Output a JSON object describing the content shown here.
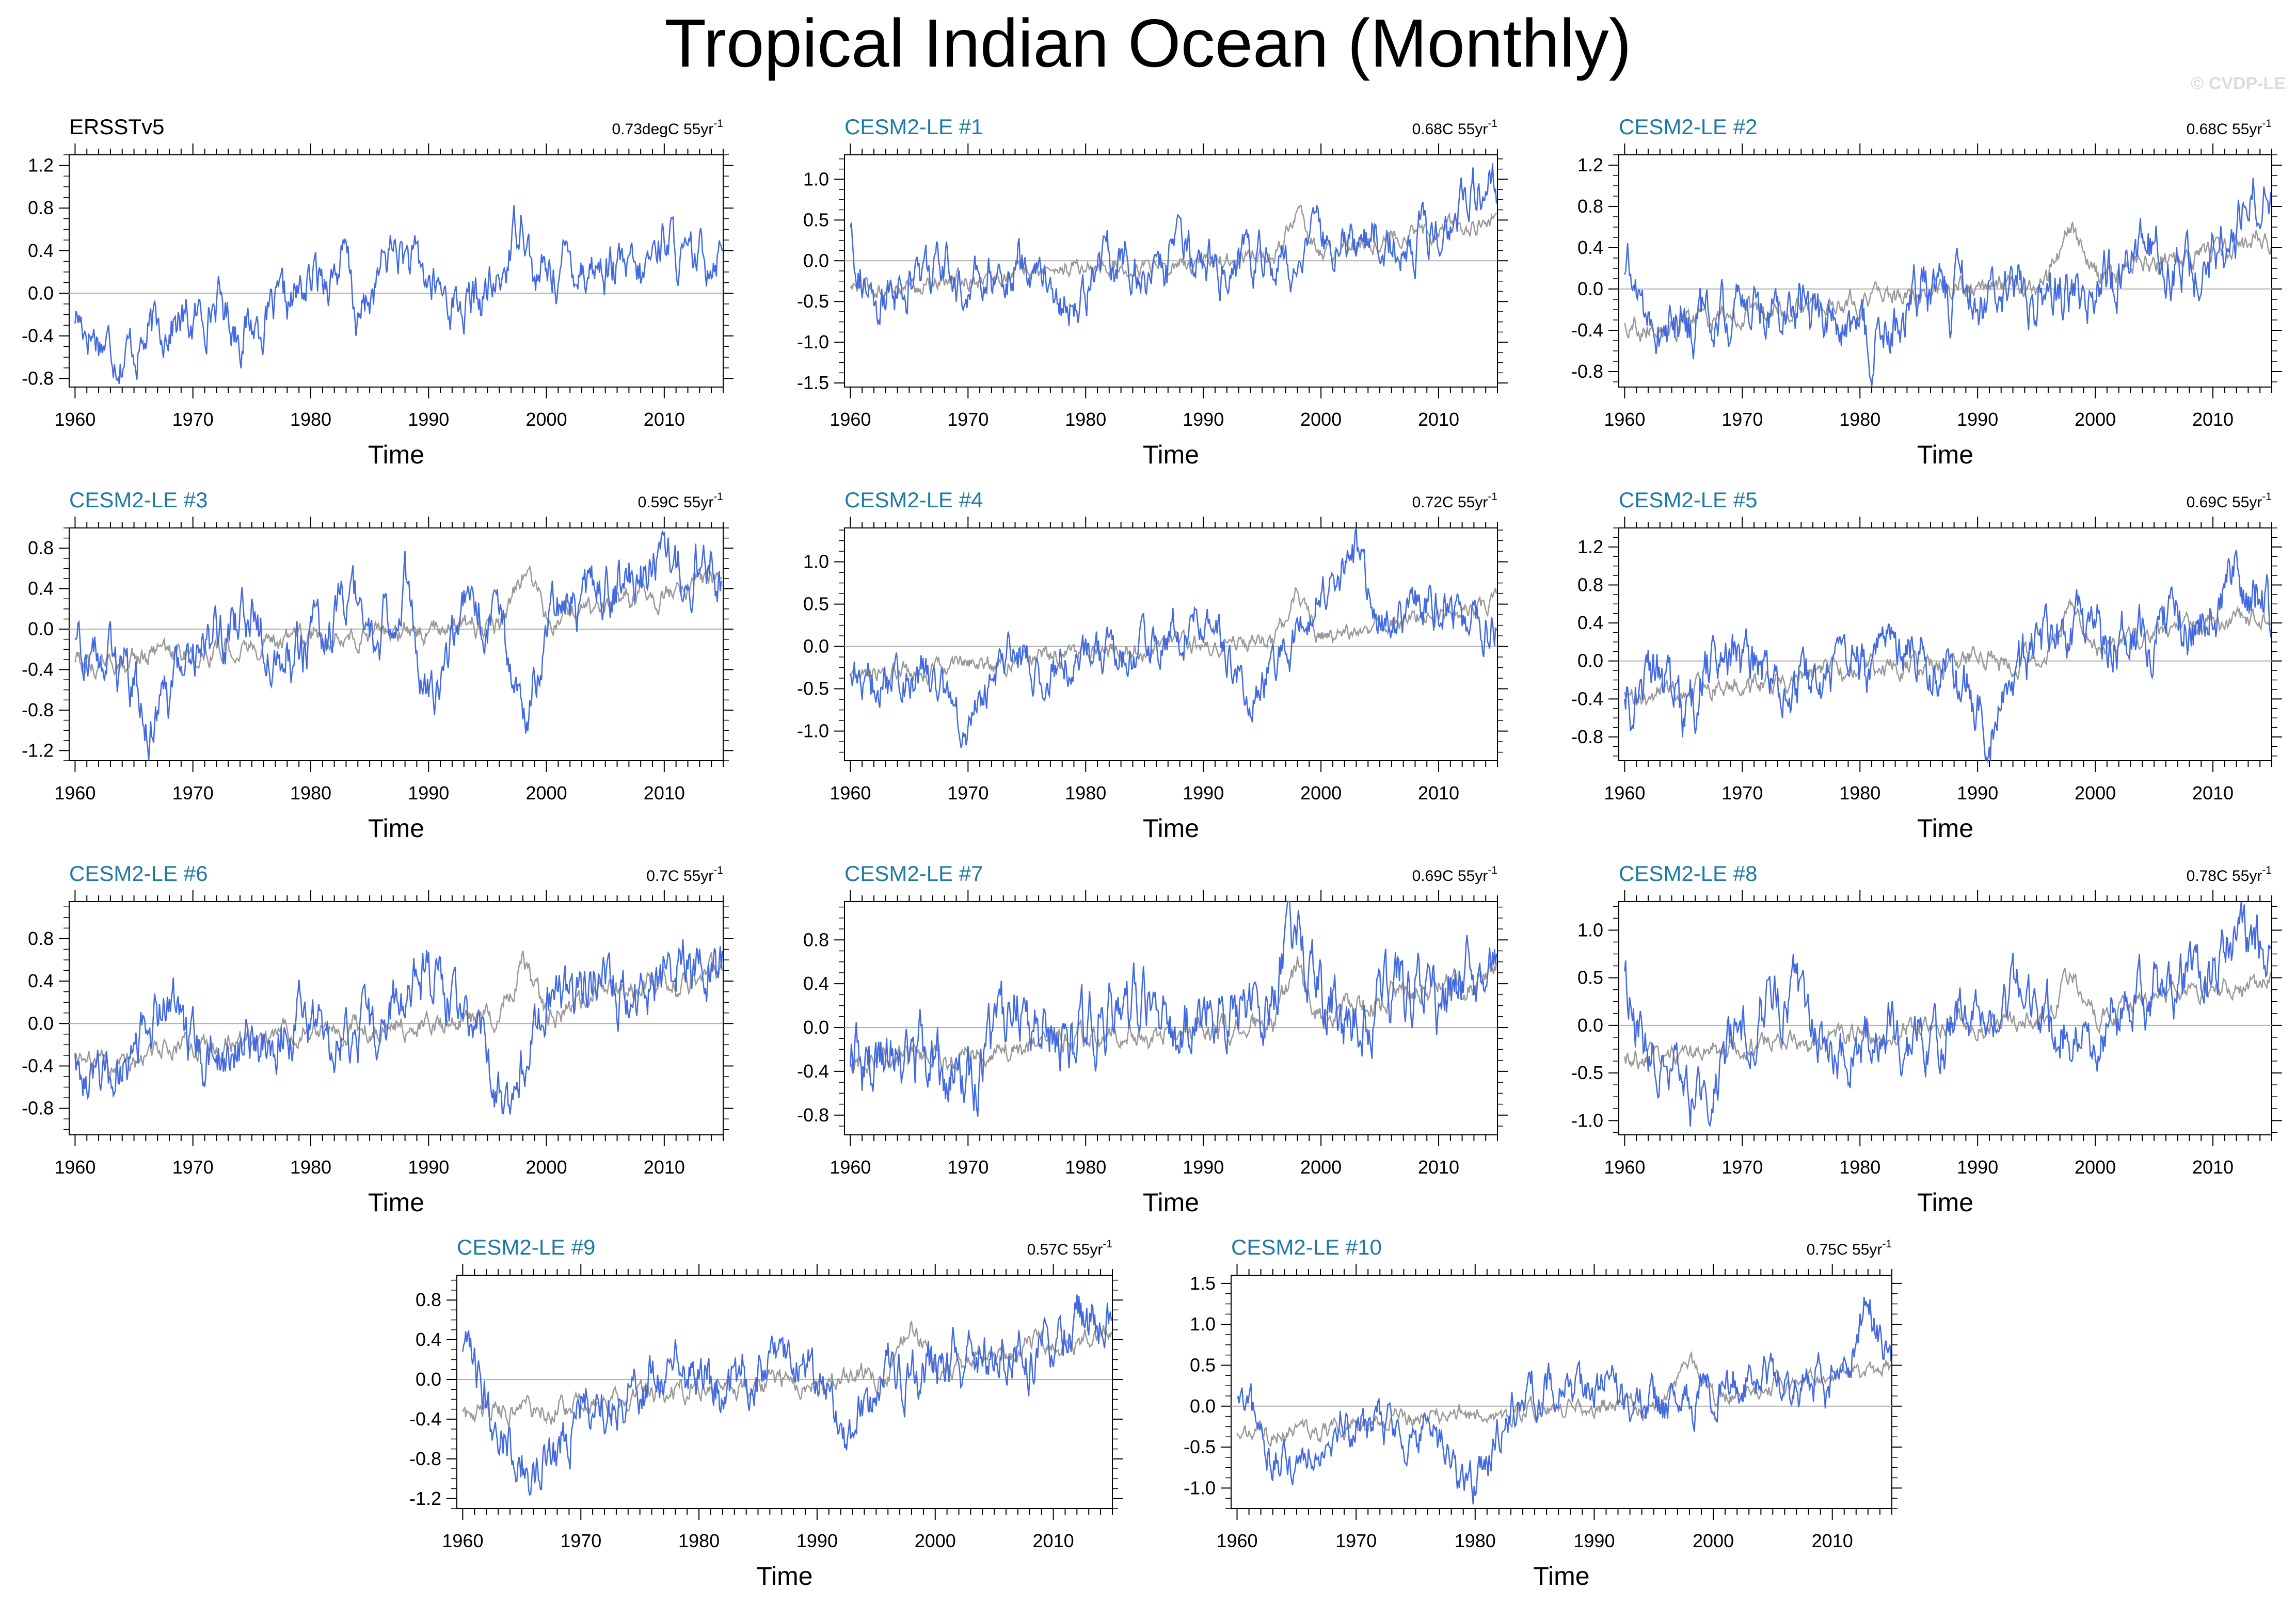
{
  "title": "Tropical Indian Ocean (Monthly)",
  "watermark": "© CVDP-LE",
  "colors": {
    "observed": "#4169e1",
    "ensemble_mean": "#999999",
    "model_title": "#1c7aa3",
    "obs_title": "#000000"
  },
  "chart_data": [
    {
      "type": "line",
      "id": "ERSSTv5",
      "title": "ERSSTv5",
      "trend": "0.73degC 55yr",
      "trend_exp": "-1",
      "xlabel": "Time",
      "xticks": [
        1960,
        1970,
        1980,
        1990,
        2000,
        2010
      ],
      "yticks": [
        "1.2",
        "0.8",
        "0.4",
        "0.0",
        "-0.4",
        "-0.8"
      ],
      "ylim": [
        -0.88,
        1.3
      ],
      "xlim": [
        1959.5,
        2015
      ],
      "anchors": [
        [
          1960,
          -0.2
        ],
        [
          1962,
          -0.4
        ],
        [
          1964,
          -0.55
        ],
        [
          1966,
          -0.45
        ],
        [
          1968,
          -0.25
        ],
        [
          1970,
          -0.3
        ],
        [
          1972,
          -0.05
        ],
        [
          1974,
          -0.35
        ],
        [
          1976,
          -0.25
        ],
        [
          1978,
          -0.15
        ],
        [
          1980,
          0.1
        ],
        [
          1983,
          0.3
        ],
        [
          1984,
          -0.3
        ],
        [
          1987,
          0.45
        ],
        [
          1990,
          0.1
        ],
        [
          1993,
          -0.15
        ],
        [
          1996,
          0.05
        ],
        [
          1998,
          0.85
        ],
        [
          1999,
          0.1
        ],
        [
          2002,
          0.3
        ],
        [
          2005,
          0.25
        ],
        [
          2008,
          0.1
        ],
        [
          2010,
          0.6
        ],
        [
          2012,
          0.2
        ],
        [
          2015,
          0.5
        ]
      ],
      "noise": 0.15
    },
    {
      "type": "line",
      "id": "m1",
      "title": "CESM2-LE #1",
      "trend": "0.68C 55yr",
      "trend_exp": "-1",
      "xlabel": "Time",
      "xticks": [
        1960,
        1970,
        1980,
        1990,
        2000,
        2010
      ],
      "yticks": [
        "1.0",
        "0.5",
        "0.0",
        "-0.5",
        "-1.0",
        "-1.5"
      ],
      "ylim": [
        -1.55,
        1.3
      ],
      "xlim": [
        1959.5,
        2015
      ],
      "anchors": [
        [
          1960,
          0.5
        ],
        [
          1962,
          -0.8
        ],
        [
          1964,
          -0.3
        ],
        [
          1968,
          -0.1
        ],
        [
          1970,
          -0.4
        ],
        [
          1975,
          0.1
        ],
        [
          1979,
          -0.6
        ],
        [
          1982,
          0.1
        ],
        [
          1985,
          -0.2
        ],
        [
          1990,
          0.1
        ],
        [
          1995,
          -0.1
        ],
        [
          2000,
          0.2
        ],
        [
          2005,
          0.3
        ],
        [
          2010,
          0.35
        ],
        [
          2014,
          1.0
        ],
        [
          2015,
          0.9
        ]
      ],
      "noise": 0.2
    },
    {
      "type": "line",
      "id": "m2",
      "title": "CESM2-LE #2",
      "trend": "0.68C 55yr",
      "trend_exp": "-1",
      "xlabel": "Time",
      "xticks": [
        1960,
        1970,
        1980,
        1990,
        2000,
        2010
      ],
      "yticks": [
        "1.2",
        "0.8",
        "0.4",
        "0.0",
        "-0.4",
        "-0.8"
      ],
      "ylim": [
        -0.95,
        1.3
      ],
      "xlim": [
        1959.5,
        2015
      ],
      "anchors": [
        [
          1960,
          0.2
        ],
        [
          1963,
          -0.4
        ],
        [
          1967,
          -0.3
        ],
        [
          1972,
          -0.1
        ],
        [
          1977,
          -0.2
        ],
        [
          1981,
          -0.6
        ],
        [
          1985,
          -0.1
        ],
        [
          1990,
          -0.1
        ],
        [
          1995,
          0.0
        ],
        [
          2000,
          -0.05
        ],
        [
          2004,
          0.4
        ],
        [
          2008,
          0.2
        ],
        [
          2012,
          0.6
        ],
        [
          2014,
          1.1
        ],
        [
          2015,
          0.8
        ]
      ],
      "noise": 0.18
    },
    {
      "type": "line",
      "id": "m3",
      "title": "CESM2-LE #3",
      "trend": "0.59C 55yr",
      "trend_exp": "-1",
      "xlabel": "Time",
      "xticks": [
        1960,
        1970,
        1980,
        1990,
        2000,
        2010
      ],
      "yticks": [
        "0.8",
        "0.4",
        "0.0",
        "-0.4",
        "-0.8",
        "-1.2"
      ],
      "ylim": [
        -1.3,
        1.0
      ],
      "xlim": [
        1959.5,
        2015
      ],
      "anchors": [
        [
          1960,
          -0.05
        ],
        [
          1963,
          -0.3
        ],
        [
          1967,
          -1.0
        ],
        [
          1970,
          -0.2
        ],
        [
          1975,
          0.1
        ],
        [
          1979,
          -0.3
        ],
        [
          1983,
          0.2
        ],
        [
          1986,
          0.0
        ],
        [
          1988,
          0.45
        ],
        [
          1990,
          -0.7
        ],
        [
          1993,
          0.1
        ],
        [
          1996,
          0.2
        ],
        [
          1998,
          -0.9
        ],
        [
          2001,
          0.2
        ],
        [
          2005,
          0.3
        ],
        [
          2010,
          0.6
        ],
        [
          2014,
          0.7
        ],
        [
          2015,
          0.3
        ]
      ],
      "noise": 0.18
    },
    {
      "type": "line",
      "id": "m4",
      "title": "CESM2-LE #4",
      "trend": "0.72C 55yr",
      "trend_exp": "-1",
      "xlabel": "Time",
      "xticks": [
        1960,
        1970,
        1980,
        1990,
        2000,
        2010
      ],
      "yticks": [
        "1.0",
        "0.5",
        "0.0",
        "-0.5",
        "-1.0"
      ],
      "ylim": [
        -1.35,
        1.4
      ],
      "xlim": [
        1959.5,
        2015
      ],
      "anchors": [
        [
          1960,
          -0.3
        ],
        [
          1963,
          -0.5
        ],
        [
          1966,
          -0.3
        ],
        [
          1970,
          -1.0
        ],
        [
          1973,
          0.0
        ],
        [
          1977,
          -0.3
        ],
        [
          1981,
          -0.2
        ],
        [
          1985,
          0.0
        ],
        [
          1990,
          0.4
        ],
        [
          1994,
          -0.6
        ],
        [
          1998,
          0.1
        ],
        [
          2003,
          1.1
        ],
        [
          2005,
          0.3
        ],
        [
          2010,
          0.5
        ],
        [
          2013,
          0.3
        ],
        [
          2015,
          0.2
        ]
      ],
      "noise": 0.18
    },
    {
      "type": "line",
      "id": "m5",
      "title": "CESM2-LE #5",
      "trend": "0.69C 55yr",
      "trend_exp": "-1",
      "xlabel": "Time",
      "xticks": [
        1960,
        1970,
        1980,
        1990,
        2000,
        2010
      ],
      "yticks": [
        "1.2",
        "0.8",
        "0.4",
        "0.0",
        "-0.4",
        "-0.8"
      ],
      "ylim": [
        -1.05,
        1.4
      ],
      "xlim": [
        1959.5,
        2015
      ],
      "anchors": [
        [
          1960,
          -0.4
        ],
        [
          1963,
          -0.1
        ],
        [
          1965,
          -0.7
        ],
        [
          1968,
          0.1
        ],
        [
          1972,
          -0.2
        ],
        [
          1976,
          -0.3
        ],
        [
          1980,
          -0.2
        ],
        [
          1984,
          0.2
        ],
        [
          1988,
          -0.1
        ],
        [
          1991,
          -0.8
        ],
        [
          1994,
          0.0
        ],
        [
          1998,
          0.3
        ],
        [
          2001,
          0.2
        ],
        [
          2005,
          0.4
        ],
        [
          2009,
          0.3
        ],
        [
          2012,
          1.0
        ],
        [
          2015,
          0.5
        ]
      ],
      "noise": 0.2
    },
    {
      "type": "line",
      "id": "m6",
      "title": "CESM2-LE #6",
      "trend": "0.7C 55yr",
      "trend_exp": "-1",
      "xlabel": "Time",
      "xticks": [
        1960,
        1970,
        1980,
        1990,
        2000,
        2010
      ],
      "yticks": [
        "0.8",
        "0.4",
        "0.0",
        "-0.4",
        "-0.8"
      ],
      "ylim": [
        -1.05,
        1.15
      ],
      "xlim": [
        1959.5,
        2015
      ],
      "anchors": [
        [
          1960,
          -0.3
        ],
        [
          1964,
          -0.5
        ],
        [
          1968,
          0.3
        ],
        [
          1971,
          -0.4
        ],
        [
          1976,
          -0.2
        ],
        [
          1980,
          0.1
        ],
        [
          1983,
          -0.3
        ],
        [
          1987,
          0.2
        ],
        [
          1990,
          0.5
        ],
        [
          1993,
          0.1
        ],
        [
          1997,
          -0.8
        ],
        [
          2000,
          0.2
        ],
        [
          2004,
          0.4
        ],
        [
          2008,
          0.2
        ],
        [
          2012,
          0.7
        ],
        [
          2015,
          0.4
        ]
      ],
      "noise": 0.18
    },
    {
      "type": "line",
      "id": "m7",
      "title": "CESM2-LE #7",
      "trend": "0.69C 55yr",
      "trend_exp": "-1",
      "xlabel": "Time",
      "xticks": [
        1960,
        1970,
        1980,
        1990,
        2000,
        2010
      ],
      "yticks": [
        "0.8",
        "0.4",
        "0.0",
        "-0.4",
        "-0.8"
      ],
      "ylim": [
        -0.98,
        1.15
      ],
      "xlim": [
        1959.5,
        2015
      ],
      "anchors": [
        [
          1960,
          -0.4
        ],
        [
          1965,
          -0.2
        ],
        [
          1970,
          -0.5
        ],
        [
          1974,
          0.2
        ],
        [
          1979,
          -0.2
        ],
        [
          1983,
          0.3
        ],
        [
          1988,
          0.0
        ],
        [
          1992,
          0.2
        ],
        [
          1995,
          0.1
        ],
        [
          1998,
          0.8
        ],
        [
          2002,
          0.0
        ],
        [
          2006,
          0.4
        ],
        [
          2010,
          0.2
        ],
        [
          2014,
          0.7
        ],
        [
          2015,
          0.5
        ]
      ],
      "noise": 0.2
    },
    {
      "type": "line",
      "id": "m8",
      "title": "CESM2-LE #8",
      "trend": "0.78C 55yr",
      "trend_exp": "-1",
      "xlabel": "Time",
      "xticks": [
        1960,
        1970,
        1980,
        1990,
        2000,
        2010
      ],
      "yticks": [
        "1.0",
        "0.5",
        "0.0",
        "-0.5",
        "-1.0"
      ],
      "ylim": [
        -1.15,
        1.3
      ],
      "xlim": [
        1959.5,
        2015
      ],
      "anchors": [
        [
          1960,
          0.5
        ],
        [
          1962,
          -0.3
        ],
        [
          1966,
          -0.8
        ],
        [
          1970,
          0.0
        ],
        [
          1974,
          0.4
        ],
        [
          1978,
          -0.3
        ],
        [
          1982,
          0.0
        ],
        [
          1986,
          -0.2
        ],
        [
          1990,
          0.2
        ],
        [
          1994,
          0.3
        ],
        [
          1998,
          -0.1
        ],
        [
          2003,
          0.2
        ],
        [
          2006,
          0.4
        ],
        [
          2010,
          0.6
        ],
        [
          2012,
          1.0
        ],
        [
          2015,
          0.8
        ]
      ],
      "noise": 0.2
    },
    {
      "type": "line",
      "id": "m9",
      "title": "CESM2-LE #9",
      "trend": "0.57C 55yr",
      "trend_exp": "-1",
      "xlabel": "Time",
      "xticks": [
        1960,
        1970,
        1980,
        1990,
        2000,
        2010
      ],
      "yticks": [
        "0.8",
        "0.4",
        "0.0",
        "-0.4",
        "-0.8",
        "-1.2"
      ],
      "ylim": [
        -1.3,
        1.05
      ],
      "xlim": [
        1959.5,
        2015
      ],
      "anchors": [
        [
          1960,
          0.2
        ],
        [
          1963,
          -0.4
        ],
        [
          1966,
          -1.0
        ],
        [
          1970,
          -0.3
        ],
        [
          1974,
          -0.1
        ],
        [
          1978,
          0.1
        ],
        [
          1982,
          -0.1
        ],
        [
          1986,
          0.2
        ],
        [
          1990,
          0.1
        ],
        [
          1992,
          -0.7
        ],
        [
          1996,
          0.0
        ],
        [
          2000,
          0.1
        ],
        [
          2004,
          0.3
        ],
        [
          2008,
          0.2
        ],
        [
          2012,
          0.6
        ],
        [
          2015,
          0.6
        ]
      ],
      "noise": 0.18
    },
    {
      "type": "line",
      "id": "m10",
      "title": "CESM2-LE #10",
      "trend": "0.75C 55yr",
      "trend_exp": "-1",
      "xlabel": "Time",
      "xticks": [
        1960,
        1970,
        1980,
        1990,
        2000,
        2010
      ],
      "yticks": [
        "1.5",
        "1.0",
        "0.5",
        "0.0",
        "-0.5",
        "-1.0"
      ],
      "ylim": [
        -1.25,
        1.6
      ],
      "xlim": [
        1959.5,
        2015
      ],
      "anchors": [
        [
          1960,
          0.0
        ],
        [
          1964,
          -0.8
        ],
        [
          1968,
          -0.2
        ],
        [
          1972,
          -0.2
        ],
        [
          1976,
          -0.4
        ],
        [
          1980,
          -1.0
        ],
        [
          1983,
          0.0
        ],
        [
          1987,
          0.3
        ],
        [
          1991,
          0.2
        ],
        [
          1995,
          -0.1
        ],
        [
          1999,
          0.1
        ],
        [
          2003,
          0.4
        ],
        [
          2007,
          0.2
        ],
        [
          2011,
          0.3
        ],
        [
          2013,
          1.3
        ],
        [
          2015,
          0.6
        ]
      ],
      "noise": 0.18
    }
  ]
}
